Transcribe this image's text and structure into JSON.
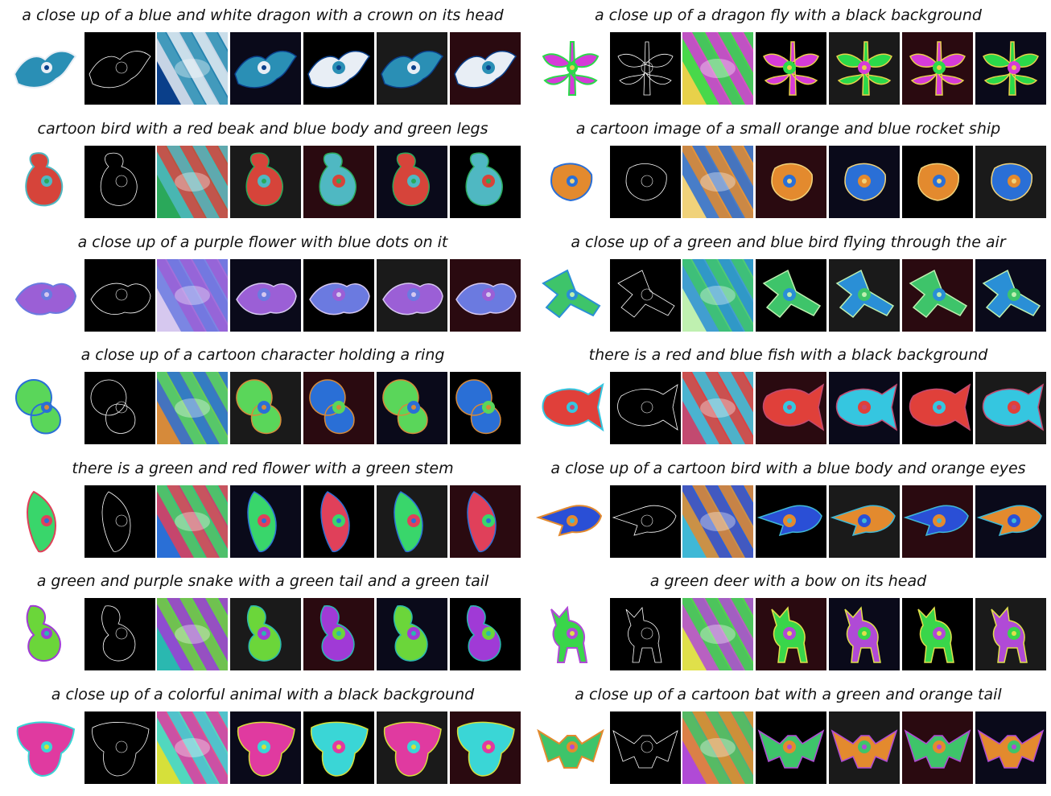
{
  "panels": [
    {
      "caption": "a close up of a blue and white dragon with a crown on its head",
      "colors": [
        "#2a8fb5",
        "#e8eef5",
        "#0a3f8a"
      ],
      "shape": "dragon"
    },
    {
      "caption": "a close up of a dragon fly with a black background",
      "colors": [
        "#d63bd8",
        "#2bd94a",
        "#e8d14a"
      ],
      "shape": "dragonfly"
    },
    {
      "caption": "cartoon bird with a red beak and blue body and green legs",
      "colors": [
        "#d6443a",
        "#4fb8c2",
        "#2aa85a"
      ],
      "shape": "bird"
    },
    {
      "caption": "a cartoon image of a small orange and blue rocket ship",
      "colors": [
        "#e38a2e",
        "#2a6fd6",
        "#f0d27a"
      ],
      "shape": "rocket"
    },
    {
      "caption": "a close up of a purple flower with blue dots on it",
      "colors": [
        "#9b5fd6",
        "#6b7ae0",
        "#d6c8ef"
      ],
      "shape": "flower"
    },
    {
      "caption": "a close up of a green and blue bird flying through the air",
      "colors": [
        "#3ec46a",
        "#2a8fd6",
        "#bff0b0"
      ],
      "shape": "flyer"
    },
    {
      "caption": "a close up of a cartoon character holding a ring",
      "colors": [
        "#5ad65a",
        "#2a6fd6",
        "#d68a3a"
      ],
      "shape": "ring"
    },
    {
      "caption": "there is a red and blue fish with a black background",
      "colors": [
        "#e0403a",
        "#35c6e0",
        "#c24a70"
      ],
      "shape": "fish"
    },
    {
      "caption": "there is a green and red flower with a green stem",
      "colors": [
        "#39d66b",
        "#e0405a",
        "#2a6fd6"
      ],
      "shape": "leaf"
    },
    {
      "caption": "a close up of a cartoon bird with a blue body and orange eyes",
      "colors": [
        "#2a4fd6",
        "#e38a2e",
        "#3fb8d6"
      ],
      "shape": "bluebird"
    },
    {
      "caption": "a green and purple snake with a green tail and a green tail",
      "colors": [
        "#6bd63a",
        "#a03ad6",
        "#2ab8b0"
      ],
      "shape": "snake"
    },
    {
      "caption": "a green deer with a bow on its head",
      "colors": [
        "#39d64a",
        "#b04ad6",
        "#e0e04a"
      ],
      "shape": "deer"
    },
    {
      "caption": "a close up of a colorful animal with a black background",
      "colors": [
        "#e03aa0",
        "#3ad6d6",
        "#d6e03a"
      ],
      "shape": "blob"
    },
    {
      "caption": "a close up of a cartoon bat with a green and orange tail",
      "colors": [
        "#3ec46a",
        "#e38a2e",
        "#b04ad6"
      ],
      "shape": "bat"
    }
  ]
}
